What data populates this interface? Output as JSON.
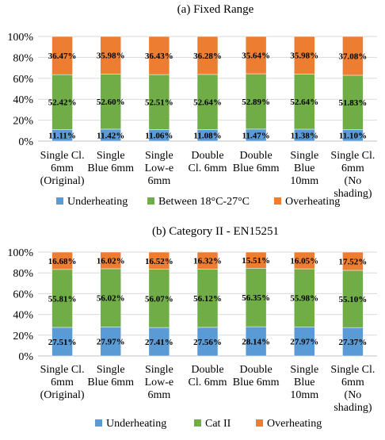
{
  "colors": {
    "underheating": "#5b9bd5",
    "between": "#70ad47",
    "overheating": "#ed7d31",
    "gridline": "#d9d9d9",
    "axis": "#bfbfbf"
  },
  "chart_data": [
    {
      "type": "bar",
      "stacked": true,
      "percent_stacked": true,
      "title": "(a) Fixed Range",
      "ylim": [
        0,
        100
      ],
      "yticks": [
        "0%",
        "20%",
        "40%",
        "60%",
        "80%",
        "100%"
      ],
      "grid": true,
      "legend_position": "bottom",
      "categories": [
        [
          "Single Cl.",
          "6mm",
          "(Original)"
        ],
        [
          "Single",
          "Blue 6mm"
        ],
        [
          "Single",
          "Low-e",
          "6mm"
        ],
        [
          "Double",
          "Cl. 6mm"
        ],
        [
          "Double",
          "Blue 6mm"
        ],
        [
          "Single",
          "Blue",
          "10mm"
        ],
        [
          "Single Cl.",
          "6mm",
          "(No",
          "shading)"
        ]
      ],
      "series": [
        {
          "name": "Underheating",
          "color_key": "underheating",
          "values": [
            11.11,
            11.42,
            11.06,
            11.08,
            11.47,
            11.38,
            11.1
          ],
          "labels": [
            "11.11%",
            "11.42%",
            "11.06%",
            "11.08%",
            "11.47%",
            "11.38%",
            "11.10%"
          ]
        },
        {
          "name": "Between 18°C-27°C",
          "color_key": "between",
          "values": [
            52.42,
            52.6,
            52.51,
            52.64,
            52.89,
            52.64,
            51.83
          ],
          "labels": [
            "52.42%",
            "52.60%",
            "52.51%",
            "52.64%",
            "52.89%",
            "52.64%",
            "51.83%"
          ]
        },
        {
          "name": "Overheating",
          "color_key": "overheating",
          "values": [
            36.47,
            35.98,
            36.43,
            36.28,
            35.64,
            35.98,
            37.08
          ],
          "labels": [
            "36.47%",
            "35.98%",
            "36.43%",
            "36.28%",
            "35.64%",
            "35.98%",
            "37.08%"
          ]
        }
      ]
    },
    {
      "type": "bar",
      "stacked": true,
      "percent_stacked": true,
      "title": "(b) Category II - EN15251",
      "ylim": [
        0,
        100
      ],
      "yticks": [
        "0%",
        "20%",
        "40%",
        "60%",
        "80%",
        "100%"
      ],
      "grid": true,
      "legend_position": "bottom",
      "categories": [
        [
          "Single Cl.",
          "6mm",
          "(Original)"
        ],
        [
          "Single",
          "Blue 6mm"
        ],
        [
          "Single",
          "Low-e",
          "6mm"
        ],
        [
          "Double",
          "Cl. 6mm"
        ],
        [
          "Double",
          "Blue 6mm"
        ],
        [
          "Single",
          "Blue",
          "10mm"
        ],
        [
          "Single Cl.",
          "6mm",
          "(No",
          "shading)"
        ]
      ],
      "series": [
        {
          "name": "Underheating",
          "color_key": "underheating",
          "values": [
            27.51,
            27.97,
            27.41,
            27.56,
            28.14,
            27.97,
            27.37
          ],
          "labels": [
            "27.51%",
            "27.97%",
            "27.41%",
            "27.56%",
            "28.14%",
            "27.97%",
            "27.37%"
          ]
        },
        {
          "name": "Cat II",
          "color_key": "between",
          "values": [
            55.81,
            56.02,
            56.07,
            56.12,
            56.35,
            55.98,
            55.1
          ],
          "labels": [
            "55.81%",
            "56.02%",
            "56.07%",
            "56.12%",
            "56.35%",
            "55.98%",
            "55.10%"
          ]
        },
        {
          "name": "Overheating",
          "color_key": "overheating",
          "values": [
            16.68,
            16.02,
            16.52,
            16.32,
            15.51,
            16.05,
            17.52
          ],
          "labels": [
            "16.68%",
            "16.02%",
            "16.52%",
            "16.32%",
            "15.51%",
            "16.05%",
            "17.52%"
          ]
        }
      ]
    }
  ]
}
